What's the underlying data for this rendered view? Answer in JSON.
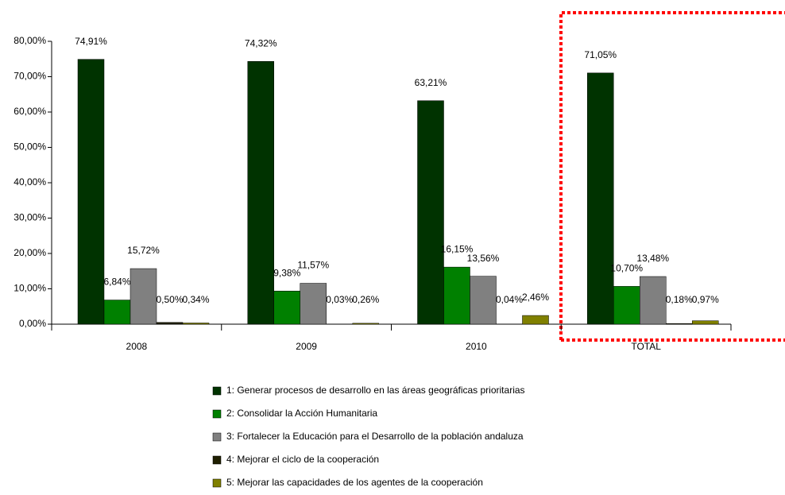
{
  "chart_data": {
    "type": "bar",
    "categories": [
      "2008",
      "2009",
      "2010",
      "TOTAL"
    ],
    "series": [
      {
        "name": "1: Generar procesos de desarrollo en las áreas geográficas prioritarias",
        "color": "#003300",
        "values": [
          74.91,
          74.32,
          63.21,
          71.05
        ],
        "value_labels": [
          "74,91%",
          "74,32%",
          "63,21%",
          "71,05%"
        ]
      },
      {
        "name": "2: Consolidar la Acción Humanitaria",
        "color": "#008000",
        "values": [
          6.84,
          9.38,
          16.15,
          10.7
        ],
        "value_labels": [
          "6,84%",
          "9,38%",
          "16,15%",
          "10,70%"
        ]
      },
      {
        "name": "3: Fortalecer la Educación para el Desarrollo de la población andaluza",
        "color": "#808080",
        "values": [
          15.72,
          11.57,
          13.56,
          13.48
        ],
        "value_labels": [
          "15,72%",
          "11,57%",
          "13,56%",
          "13,48%"
        ]
      },
      {
        "name": "4: Mejorar el ciclo de la cooperación",
        "color": "#1f1f00",
        "values": [
          0.5,
          0.03,
          0.04,
          0.18
        ],
        "value_labels": [
          "0,50%",
          "0,03%",
          "0,04%",
          "0,18%"
        ]
      },
      {
        "name": "5: Mejorar las capacidades de los agentes de la cooperación",
        "color": "#808000",
        "values": [
          0.34,
          0.26,
          2.46,
          0.97
        ],
        "value_labels": [
          "0,34%",
          "0,26%",
          "2,46%",
          "0,97%"
        ]
      }
    ],
    "ylim": [
      0,
      80
    ],
    "yticks": [
      {
        "value": 0,
        "label": "0,00%"
      },
      {
        "value": 10,
        "label": "10,00%"
      },
      {
        "value": 20,
        "label": "20,00%"
      },
      {
        "value": 30,
        "label": "30,00%"
      },
      {
        "value": 40,
        "label": "40,00%"
      },
      {
        "value": 50,
        "label": "50,00%"
      },
      {
        "value": 60,
        "label": "60,00%"
      },
      {
        "value": 70,
        "label": "70,00%"
      },
      {
        "value": 80,
        "label": "80,00%"
      }
    ],
    "legend": "bottom"
  }
}
